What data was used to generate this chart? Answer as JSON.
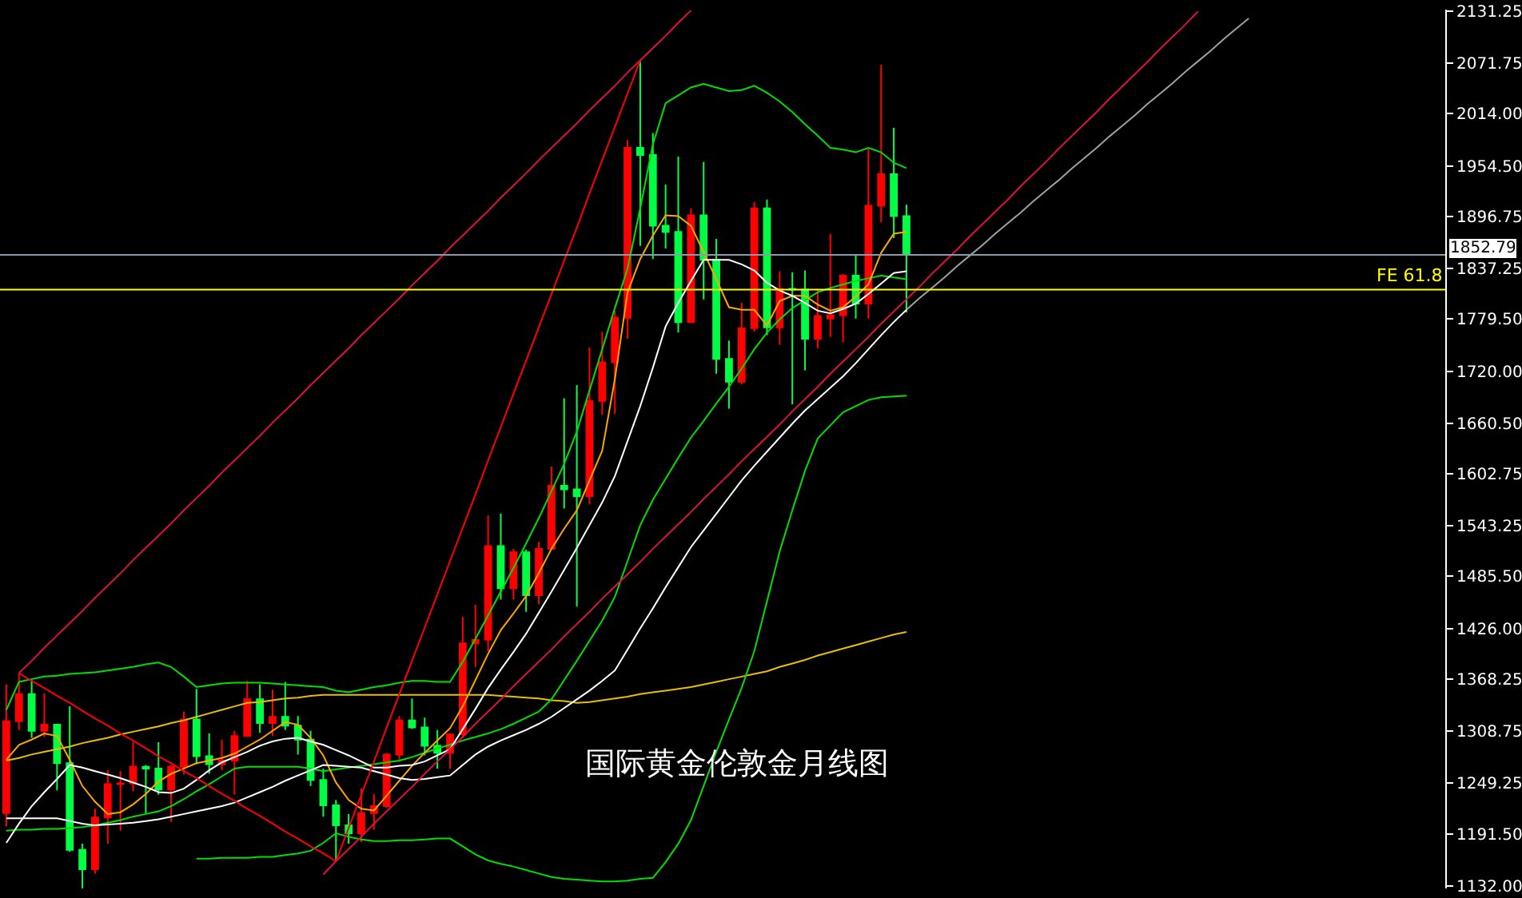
{
  "chart_data": {
    "type": "candlestick",
    "title": "国际黄金伦敦金月线图",
    "categories": [
      null,
      null,
      null,
      null,
      null,
      null,
      null,
      null,
      null,
      null,
      null,
      null,
      null,
      null,
      null,
      null,
      null,
      null,
      null,
      null,
      null,
      null,
      null,
      null,
      null,
      null,
      null,
      null,
      null,
      null,
      null,
      null,
      null,
      null,
      null,
      null,
      null,
      null,
      null,
      null,
      null,
      null,
      null,
      null,
      null,
      null,
      null,
      null,
      null,
      null,
      null,
      null,
      null,
      null,
      null,
      null,
      null,
      null,
      null,
      null,
      null,
      null,
      null,
      null,
      null,
      null,
      null,
      null,
      null,
      null,
      null,
      null,
      null,
      null,
      null,
      null,
      null,
      null,
      null,
      null,
      null,
      null,
      null,
      null,
      null,
      null,
      null,
      null,
      null,
      null,
      null,
      null,
      null,
      null,
      null,
      null,
      null,
      null,
      null,
      null,
      null,
      null,
      null,
      null,
      null,
      null,
      null,
      null,
      null,
      null,
      null,
      null,
      null,
      null
    ],
    "ohlc": [
      [
        1215,
        1362,
        1200,
        1320
      ],
      [
        1320,
        1375,
        1310,
        1351
      ],
      [
        1351,
        1367,
        1301,
        1309
      ],
      [
        1309,
        1352,
        1302,
        1316
      ],
      [
        1316,
        1317,
        1241,
        1272
      ],
      [
        1272,
        1337,
        1171,
        1173
      ],
      [
        1173,
        1180,
        1123,
        1151
      ],
      [
        1151,
        1220,
        1146,
        1210
      ],
      [
        1210,
        1264,
        1180,
        1248
      ],
      [
        1248,
        1263,
        1195,
        1249
      ],
      [
        1249,
        1296,
        1240,
        1268
      ],
      [
        1268,
        1270,
        1214,
        1266
      ],
      [
        1266,
        1296,
        1236,
        1242
      ],
      [
        1242,
        1270,
        1205,
        1268
      ],
      [
        1268,
        1331,
        1259,
        1322
      ],
      [
        1322,
        1357,
        1271,
        1280
      ],
      [
        1280,
        1306,
        1260,
        1271
      ],
      [
        1271,
        1299,
        1264,
        1275
      ],
      [
        1275,
        1309,
        1236,
        1303
      ],
      [
        1303,
        1366,
        1302,
        1345
      ],
      [
        1345,
        1362,
        1307,
        1318
      ],
      [
        1318,
        1356,
        1303,
        1325
      ],
      [
        1325,
        1365,
        1310,
        1315
      ],
      [
        1315,
        1326,
        1282,
        1299
      ],
      [
        1299,
        1309,
        1246,
        1253
      ],
      [
        1253,
        1266,
        1211,
        1224
      ],
      [
        1224,
        1230,
        1160,
        1201
      ],
      [
        1201,
        1214,
        1180,
        1192
      ],
      [
        1192,
        1243,
        1182,
        1215
      ],
      [
        1215,
        1237,
        1196,
        1223
      ],
      [
        1223,
        1284,
        1221,
        1282
      ],
      [
        1282,
        1326,
        1276,
        1321
      ],
      [
        1321,
        1346,
        1311,
        1313
      ],
      [
        1313,
        1324,
        1281,
        1292
      ],
      [
        1292,
        1310,
        1266,
        1284
      ],
      [
        1284,
        1306,
        1266,
        1305
      ],
      [
        1305,
        1439,
        1301,
        1409
      ],
      [
        1409,
        1453,
        1382,
        1413
      ],
      [
        1413,
        1555,
        1400,
        1520
      ],
      [
        1520,
        1557,
        1459,
        1472
      ],
      [
        1472,
        1517,
        1459,
        1513
      ],
      [
        1513,
        1516,
        1445,
        1464
      ],
      [
        1464,
        1525,
        1454,
        1517
      ],
      [
        1517,
        1611,
        1517,
        1589
      ],
      [
        1589,
        1689,
        1563,
        1585
      ],
      [
        1585,
        1704,
        1451,
        1577
      ],
      [
        1577,
        1747,
        1568,
        1686
      ],
      [
        1686,
        1765,
        1670,
        1730
      ],
      [
        1730,
        1789,
        1671,
        1781
      ],
      [
        1781,
        1984,
        1757,
        1975
      ],
      [
        1975,
        2075,
        1863,
        1967
      ],
      [
        1967,
        1992,
        1848,
        1886
      ],
      [
        1886,
        1933,
        1860,
        1879
      ],
      [
        1879,
        1965,
        1764,
        1776
      ],
      [
        1776,
        1906,
        1775,
        1898
      ],
      [
        1898,
        1959,
        1802,
        1847
      ],
      [
        1847,
        1871,
        1717,
        1734
      ],
      [
        1734,
        1755,
        1677,
        1708
      ],
      [
        1708,
        1798,
        1705,
        1769
      ],
      [
        1769,
        1913,
        1765,
        1906
      ],
      [
        1906,
        1916,
        1761,
        1770
      ],
      [
        1770,
        1834,
        1750,
        1814
      ],
      [
        1814,
        1833,
        1682,
        1813
      ],
      [
        1813,
        1835,
        1721,
        1757
      ],
      [
        1757,
        1814,
        1746,
        1783
      ],
      [
        1780,
        1877,
        1759,
        1784
      ],
      [
        1784,
        1831,
        1753,
        1829
      ],
      [
        1829,
        1853,
        1780,
        1797
      ],
      [
        1797,
        1974,
        1780,
        1909
      ],
      [
        1909,
        2070,
        1890,
        1945
      ],
      [
        1945,
        1998,
        1872,
        1897
      ],
      [
        1897,
        1910,
        1787,
        1852.79
      ],
      null,
      null,
      null,
      null,
      null,
      null,
      null,
      null,
      null,
      null,
      null,
      null,
      null,
      null,
      null,
      null,
      null,
      null,
      null,
      null,
      null,
      null,
      null,
      null,
      null,
      null,
      null,
      null,
      null,
      null,
      null,
      null,
      null,
      null,
      null,
      null,
      null,
      null,
      null,
      null,
      null,
      null
    ],
    "colors": [
      "#ff0000",
      "#ff0000",
      "#00ff44",
      "#ff0000",
      "#00ff44",
      "#00ff44",
      "#00ff44",
      "#ff0000",
      "#ff0000",
      "#ff0000",
      "#ff0000",
      "#00ff44",
      "#00ff44",
      "#ff0000",
      "#ff0000",
      "#00ff44",
      "#00ff44",
      "#ff0000",
      "#ff0000",
      "#ff0000",
      "#00ff44",
      "#ff0000",
      "#00ff44",
      "#00ff44",
      "#00ff44",
      "#00ff44",
      "#00ff44",
      "#00ff44",
      "#ff0000",
      "#ff0000",
      "#ff0000",
      "#ff0000",
      "#00ff44",
      "#00ff44",
      "#00ff44",
      "#ff0000",
      "#ff0000",
      "#ff0000",
      "#ff0000",
      "#00ff44",
      "#ff0000",
      "#00ff44",
      "#ff0000",
      "#ff0000",
      "#00ff44",
      "#00ff44",
      "#ff0000",
      "#ff0000",
      "#ff0000",
      "#ff0000",
      "#00ff44",
      "#00ff44",
      "#00ff44",
      "#00ff44",
      "#ff0000",
      "#00ff44",
      "#00ff44",
      "#00ff44",
      "#ff0000",
      "#ff0000",
      "#00ff44",
      "#ff0000",
      "#00ff44",
      "#00ff44",
      "#ff0000",
      "#ff0000",
      "#ff0000",
      "#00ff44",
      "#ff0000",
      "#ff0000",
      "#00ff44",
      "#00ff44",
      null,
      null,
      null,
      null,
      null,
      null,
      null,
      null,
      null,
      null,
      null,
      null,
      null,
      null,
      null,
      null,
      null,
      null,
      null,
      null,
      null,
      null,
      null,
      null,
      null,
      null,
      null,
      null,
      null,
      null,
      null,
      null,
      null,
      null,
      null,
      null,
      null,
      null,
      null,
      null,
      null,
      null
    ],
    "series": [
      {
        "type": "line",
        "color": "#e8c000",
        "values": [
          1275,
          1278,
          1282,
          1285,
          1288,
          1291,
          1295,
          1298,
          1301,
          1305,
          1308,
          1311,
          1314,
          1318,
          1321,
          1325,
          1329,
          1333,
          1337,
          1341,
          1342,
          1344,
          1346,
          1347,
          1349,
          1350,
          1350,
          1350,
          1350,
          1350,
          1350,
          1350,
          1350,
          1350,
          1350,
          1350,
          1350,
          1350,
          1350,
          1349,
          1348,
          1347,
          1346,
          1344,
          1343,
          1341,
          1342,
          1344,
          1346,
          1348,
          1351,
          1353,
          1355,
          1357,
          1359,
          1362,
          1365,
          1368,
          1371,
          1374,
          1377,
          1382,
          1386,
          1390,
          1395,
          1399,
          1403,
          1407,
          1411,
          1415,
          1419,
          1422,
          null,
          null,
          null,
          null,
          null,
          null,
          null,
          null,
          null,
          null,
          null,
          null,
          null,
          null,
          null,
          null,
          null,
          null,
          null,
          null,
          null,
          null,
          null,
          null,
          null,
          null,
          null,
          null,
          null,
          null,
          null,
          null,
          null,
          null,
          null,
          null,
          null,
          null,
          null,
          null,
          null,
          null
        ]
      },
      {
        "type": "line",
        "color": "#00e000",
        "values": [
          1333,
          1365,
          1368,
          1371,
          1372,
          1374,
          1375,
          1376,
          1378,
          1380,
          1382,
          1385,
          1387,
          1382,
          1371,
          1359,
          1361,
          1363,
          1364,
          1364,
          1364,
          1363,
          1362,
          1361,
          1360,
          1359,
          1355,
          1353,
          1356,
          1359,
          1361,
          1364,
          1366,
          1366,
          1365,
          1365,
          1388,
          1414,
          1441,
          1468,
          1495,
          1523,
          1552,
          1583,
          1614,
          1651,
          1698,
          1745,
          1792,
          1837,
          1906,
          1979,
          2026,
          2035,
          2044,
          2048,
          2044,
          2040,
          2041,
          2046,
          2038,
          2028,
          2016,
          2002,
          1989,
          1975,
          1973,
          1970,
          1975,
          1970,
          1958,
          1952,
          null,
          null,
          null,
          null,
          null,
          null,
          null,
          null,
          null,
          null,
          null,
          null,
          null,
          null,
          null,
          null,
          null,
          null,
          null,
          null,
          null,
          null,
          null,
          null,
          null,
          null,
          null,
          null,
          null,
          null,
          null,
          null,
          null,
          null,
          null,
          null,
          null,
          null,
          null,
          null,
          null,
          null
        ]
      },
      {
        "type": "line",
        "color": "#00e000",
        "values": [
          1195,
          1196,
          1196,
          1197,
          1197,
          1198,
          1199,
          1201,
          1204,
          1207,
          1211,
          1214,
          1217,
          1223,
          1231,
          1240,
          1248,
          1257,
          1266,
          1268,
          1268,
          1268,
          1268,
          1268,
          1266,
          1263,
          1265,
          1267,
          1269,
          1271,
          1273,
          1275,
          1279,
          1284,
          1289,
          1293,
          1298,
          1302,
          1306,
          1311,
          1317,
          1324,
          1331,
          1345,
          1367,
          1389,
          1412,
          1435,
          1462,
          1503,
          1544,
          1573,
          1597,
          1621,
          1644,
          1663,
          1683,
          1702,
          1723,
          1745,
          1764,
          1779,
          1792,
          1801,
          1810,
          1815,
          1819,
          1823,
          1826,
          1829,
          1827,
          1825,
          null,
          null,
          null,
          null,
          null,
          null,
          null,
          null,
          null,
          null,
          null,
          null,
          null,
          null,
          null,
          null,
          null,
          null,
          null,
          null,
          null,
          null,
          null,
          null,
          null,
          null,
          null,
          null,
          null,
          null,
          null,
          null,
          null,
          null,
          null,
          null,
          null,
          null,
          null,
          null,
          null,
          null
        ]
      },
      {
        "type": "line",
        "color": "#00e000",
        "values": [
          null,
          null,
          null,
          null,
          null,
          null,
          null,
          null,
          null,
          null,
          null,
          null,
          null,
          null,
          null,
          1163,
          1163,
          1164,
          1164,
          1164,
          1165,
          1165,
          1167,
          1169,
          1172,
          1181,
          1192,
          1188,
          1185,
          1183,
          1183,
          1184,
          1184,
          1185,
          1186,
          1186,
          1177,
          1168,
          1161,
          1157,
          1154,
          1150,
          1146,
          1142,
          1140,
          1139,
          1138,
          1137,
          1137,
          1138,
          1140,
          1141,
          1159,
          1180,
          1207,
          1246,
          1285,
          1322,
          1358,
          1400,
          1457,
          1514,
          1561,
          1606,
          1643,
          1658,
          1673,
          1680,
          1687,
          1690,
          1691,
          1692,
          null,
          null,
          null,
          null,
          null,
          null,
          null,
          null,
          null,
          null,
          null,
          null,
          null,
          null,
          null,
          null,
          null,
          null,
          null,
          null,
          null,
          null,
          null,
          null,
          null,
          null,
          null,
          null,
          null,
          null,
          null,
          null,
          null,
          null,
          null,
          null,
          null,
          null,
          null,
          null,
          null,
          null
        ]
      },
      {
        "type": "line",
        "color": "#ffa500",
        "values": [
          1276,
          1293,
          1299,
          1306,
          1303,
          1276,
          1246,
          1228,
          1214,
          1216,
          1225,
          1237,
          1251,
          1260,
          1266,
          1272,
          1275,
          1278,
          1283,
          1291,
          1299,
          1309,
          1319,
          1316,
          1301,
          1281,
          1250,
          1230,
          1220,
          1218,
          1235,
          1252,
          1269,
          1284,
          1298,
          1312,
          1337,
          1367,
          1397,
          1424,
          1443,
          1463,
          1489,
          1517,
          1540,
          1561,
          1595,
          1629,
          1711,
          1810,
          1848,
          1875,
          1898,
          1897,
          1886,
          1856,
          1825,
          1793,
          1790,
          1790,
          1772,
          1800,
          1806,
          1806,
          1796,
          1789,
          1793,
          1805,
          1819,
          1855,
          1877,
          1879,
          null,
          null,
          null,
          null,
          null,
          null,
          null,
          null,
          null,
          null,
          null,
          null,
          null,
          null,
          null,
          null,
          null,
          null,
          null,
          null,
          null,
          null,
          null,
          null,
          null,
          null,
          null,
          null,
          null,
          null,
          null,
          null,
          null,
          null,
          null,
          null,
          null,
          null,
          null,
          null,
          null,
          null
        ]
      },
      {
        "type": "line",
        "color": "#ffffff",
        "values": [
          1181,
          1203,
          1223,
          1239,
          1254,
          1270,
          1267,
          1263,
          1259,
          1255,
          1250,
          1245,
          1239,
          1238,
          1243,
          1253,
          1264,
          1273,
          1279,
          1285,
          1292,
          1297,
          1300,
          1301,
          1297,
          1293,
          1287,
          1281,
          1274,
          1267,
          1267,
          1269,
          1270,
          1274,
          1281,
          1288,
          1311,
          1334,
          1358,
          1379,
          1399,
          1420,
          1444,
          1468,
          1493,
          1518,
          1544,
          1570,
          1600,
          1640,
          1680,
          1724,
          1771,
          1798,
          1823,
          1847,
          1847,
          1847,
          1842,
          1835,
          1821,
          1812,
          1806,
          1798,
          1789,
          1786,
          1791,
          1797,
          1808,
          1820,
          1832,
          1834,
          null,
          null,
          null,
          null,
          null,
          null,
          null,
          null,
          null,
          null,
          null,
          null,
          null,
          null,
          null,
          null,
          null,
          null,
          null,
          null,
          null,
          null,
          null,
          null,
          null,
          null,
          null,
          null,
          null,
          null,
          null,
          null,
          null,
          null,
          null,
          null,
          null,
          null,
          null,
          null,
          null,
          null
        ]
      },
      {
        "type": "line",
        "color": "#ffffff",
        "values": [
          1209,
          1209,
          1209,
          1209,
          1209,
          1206,
          1203,
          1201,
          1202,
          1203,
          1204,
          1206,
          1208,
          1211,
          1214,
          1217,
          1220,
          1223,
          1227,
          1233,
          1239,
          1245,
          1252,
          1258,
          1264,
          1270,
          1269,
          1268,
          1267,
          1263,
          1259,
          1255,
          1253,
          1254,
          1256,
          1258,
          1270,
          1282,
          1291,
          1298,
          1304,
          1310,
          1317,
          1325,
          1335,
          1345,
          1355,
          1366,
          1378,
          1402,
          1426,
          1449,
          1473,
          1496,
          1519,
          1538,
          1557,
          1576,
          1595,
          1612,
          1628,
          1644,
          1660,
          1675,
          1688,
          1701,
          1714,
          1729,
          1745,
          1761,
          1776,
          1790,
          null,
          null,
          null,
          null,
          null,
          null,
          null,
          null,
          null,
          null,
          null,
          null,
          null,
          null,
          null,
          null,
          null,
          null,
          null,
          null,
          null,
          null,
          null,
          null,
          null,
          null,
          null,
          null,
          null,
          null,
          null,
          null,
          null,
          null,
          null,
          null,
          null,
          null,
          null,
          null,
          null,
          null
        ]
      },
      {
        "type": "line",
        "color": "#ff0000",
        "values": [
          null,
          1375,
          1366,
          1358,
          1349,
          1341,
          1332,
          1323,
          1315,
          1306,
          1298,
          1289,
          1280,
          1272,
          1263,
          1255,
          1246,
          1237,
          1229,
          1220,
          1212,
          1203,
          1194,
          1186,
          1177,
          1169,
          1160,
          1198,
          1236,
          1274,
          1313,
          1351,
          1389,
          1427,
          1465,
          1503,
          1541,
          1579,
          1618,
          1656,
          1694,
          1732,
          1770,
          1808,
          1846,
          1884,
          1923,
          1961,
          1999,
          2037,
          2075,
          null,
          null,
          null,
          null,
          null,
          null,
          null,
          null,
          null,
          null,
          null,
          null,
          null,
          null,
          null,
          null,
          null,
          null,
          null,
          null,
          null,
          null,
          null,
          null,
          null,
          null,
          null,
          null,
          null,
          null,
          null,
          null,
          null,
          null,
          null,
          null,
          null,
          null,
          null,
          null,
          null,
          null,
          null,
          null,
          null,
          null,
          null,
          null,
          null,
          null,
          null,
          null,
          null,
          null,
          null,
          null,
          null,
          null,
          null,
          null,
          null,
          null,
          null
        ]
      },
      {
        "type": "line",
        "color": "#dc143c",
        "values": [
          null,
          1375,
          1389,
          1404,
          1418,
          1432,
          1446,
          1461,
          1475,
          1489,
          1504,
          1518,
          1532,
          1546,
          1561,
          1575,
          1589,
          1604,
          1618,
          1632,
          1646,
          1661,
          1675,
          1689,
          1704,
          1718,
          1732,
          1746,
          1761,
          1775,
          1789,
          1803,
          1818,
          1832,
          1846,
          1861,
          1875,
          1889,
          1903,
          1918,
          1932,
          1946,
          1961,
          1975,
          1989,
          2003,
          2018,
          2032,
          2046,
          2061,
          2075,
          2089,
          2103,
          2118,
          2132,
          null,
          null,
          null,
          null,
          null,
          null,
          null,
          null,
          null,
          null,
          null,
          null,
          null,
          null,
          null,
          null,
          null,
          null,
          null,
          null,
          null,
          null,
          null,
          null,
          null,
          null,
          null,
          null,
          null,
          null,
          null,
          null,
          null,
          null,
          null,
          null,
          null,
          null,
          null,
          null,
          null,
          null,
          null,
          null,
          null,
          null,
          null,
          null,
          null,
          null,
          null,
          null,
          null,
          null,
          null,
          null,
          null,
          null,
          null
        ]
      },
      {
        "type": "line",
        "color": "#dc143c",
        "values": [
          null,
          null,
          null,
          null,
          null,
          null,
          null,
          null,
          null,
          null,
          null,
          null,
          null,
          null,
          null,
          null,
          null,
          null,
          null,
          null,
          null,
          null,
          null,
          null,
          null,
          1145,
          1160,
          1174,
          1188,
          1203,
          1217,
          1231,
          1245,
          1260,
          1274,
          1288,
          1302,
          1317,
          1331,
          1345,
          1360,
          1374,
          1388,
          1402,
          1417,
          1431,
          1445,
          1460,
          1474,
          1488,
          1502,
          1517,
          1531,
          1545,
          1559,
          1574,
          1588,
          1602,
          1617,
          1631,
          1645,
          1659,
          1674,
          1688,
          1702,
          1717,
          1731,
          1745,
          1759,
          1774,
          1788,
          1802,
          1816,
          1831,
          1845,
          1859,
          1874,
          1888,
          1902,
          1916,
          1931,
          1945,
          1959,
          1974,
          1988,
          2002,
          2016,
          2031,
          2045,
          2059,
          2073,
          2088,
          2102,
          2116,
          2131,
          null,
          null,
          null,
          null,
          null,
          null,
          null,
          null,
          null,
          null,
          null,
          null,
          null,
          null,
          null,
          null,
          null,
          null,
          null
        ]
      },
      {
        "type": "line",
        "color": "#a0a0a0",
        "values": [
          null,
          null,
          null,
          null,
          null,
          null,
          null,
          null,
          null,
          null,
          null,
          null,
          null,
          null,
          null,
          null,
          null,
          null,
          null,
          null,
          null,
          null,
          null,
          null,
          null,
          null,
          null,
          null,
          null,
          null,
          null,
          null,
          null,
          null,
          null,
          null,
          null,
          null,
          null,
          null,
          null,
          null,
          null,
          null,
          null,
          null,
          null,
          null,
          null,
          null,
          null,
          null,
          null,
          null,
          null,
          null,
          null,
          null,
          null,
          null,
          null,
          null,
          null,
          null,
          null,
          null,
          null,
          null,
          null,
          null,
          null,
          1790,
          1803,
          1815,
          1827,
          1840,
          1852,
          1864,
          1877,
          1889,
          1901,
          1914,
          1926,
          1938,
          1951,
          1963,
          1975,
          1988,
          2000,
          2012,
          2025,
          2037,
          2049,
          2062,
          2074,
          2086,
          2099,
          2111,
          2123,
          null,
          null,
          null,
          null,
          null,
          null,
          null,
          null,
          null,
          null,
          null,
          null,
          null,
          null,
          null
        ]
      }
    ],
    "ylim": [
      1129,
      2133
    ],
    "yticks": [
      {
        "value": 2131.25,
        "label": "2131.25"
      },
      {
        "value": 2071.75,
        "label": "2071.75"
      },
      {
        "value": 2014,
        "label": "2014.00"
      },
      {
        "value": 1954.5,
        "label": "1954.50"
      },
      {
        "value": 1896.75,
        "label": "1896.75"
      },
      {
        "value": 1837.25,
        "label": "1837.25"
      },
      {
        "value": 1779.5,
        "label": "1779.50"
      },
      {
        "value": 1720,
        "label": "1720.00"
      },
      {
        "value": 1660.5,
        "label": "1660.50"
      },
      {
        "value": 1602.75,
        "label": "1602.75"
      },
      {
        "value": 1543.25,
        "label": "1543.25"
      },
      {
        "value": 1485.5,
        "label": "1485.50"
      },
      {
        "value": 1426,
        "label": "1426.00"
      },
      {
        "value": 1368.25,
        "label": "1368.25"
      },
      {
        "value": 1308.75,
        "label": "1308.75"
      },
      {
        "value": 1249.25,
        "label": "1249.25"
      },
      {
        "value": 1191.5,
        "label": "1191.50"
      },
      {
        "value": 1132,
        "label": "1132.00"
      }
    ],
    "tick_labels": "y",
    "ref_lines": [
      {
        "axis": "y",
        "value": 1852.79,
        "label": "1852.79",
        "color": "#8c9aaa"
      },
      {
        "axis": "y",
        "value": 1813,
        "label": "FE 61.8",
        "color": "#ffff00"
      }
    ]
  }
}
